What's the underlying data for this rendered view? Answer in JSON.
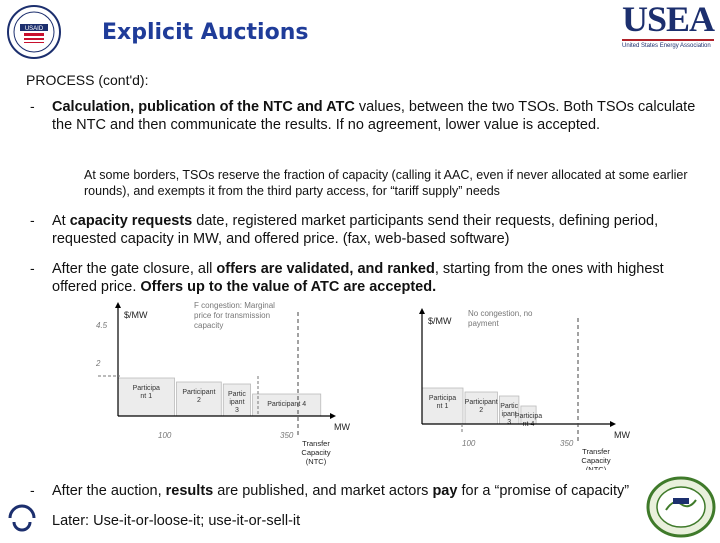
{
  "header": {
    "title": "Explicit Auctions",
    "left_logo_text": "USAID",
    "right_logo": {
      "name": "USEA",
      "tagline": "United States Energy Association"
    }
  },
  "section_title": "PROCESS (cont'd):",
  "bullets": [
    {
      "dash": "-",
      "bold": "Calculation, publication of the NTC and ATC",
      "rest": " values, between the two TSOs. Both TSOs calculate the NTC and then communicate the results. If no agreement, lower value is accepted."
    },
    {
      "dash": "-",
      "pre": "At ",
      "bold": "capacity requests",
      "rest": " date, registered market participants send their requests, defining period, requested capacity in MW, and offered price. (fax, web-based software)"
    },
    {
      "dash": "-",
      "pre": "After the gate closure, all ",
      "bold": "offers are validated, and ranked",
      "mid": ", starting from the ones with highest offered price. ",
      "bold2": "Offers up to the value of ATC are accepted."
    },
    {
      "dash": "-",
      "pre": "After the auction, ",
      "bold": "results",
      "mid": " are published, and market actors ",
      "bold2": "pay",
      "rest": " for a “promise of capacity”"
    }
  ],
  "note": "At some borders, TSOs reserve the fraction of capacity (calling it AAC, even if never allocated at some earlier rounds), and exempts it from the third party access, for “tariff supply” needs",
  "later": "Later: Use-it-or-loose-it; use-it-or-sell-it",
  "chart_data": [
    {
      "type": "bar",
      "ylabel": "$/MW",
      "xlabel": "MW",
      "annotation": "F congestion: Marginal price for transmission capacity",
      "y_ticks": [
        "4.5",
        "2"
      ],
      "x_ticks": [
        "100",
        "350"
      ],
      "capacity_label": [
        "Transfer",
        "Capacity",
        "(NTC)"
      ],
      "bars": [
        {
          "label": [
            "Participa",
            "nt 1"
          ],
          "width_mw": 100
        },
        {
          "label": [
            "Participant",
            "2"
          ],
          "width_mw": 80
        },
        {
          "label": [
            "Partic",
            "ipant",
            "3"
          ],
          "width_mw": 50
        },
        {
          "label": [
            "Participant 4"
          ],
          "width_mw": 120
        }
      ]
    },
    {
      "type": "bar",
      "ylabel": "$/MW",
      "xlabel": "MW",
      "annotation": "No congestion, no payment",
      "y_ticks": [],
      "x_ticks": [
        "100",
        "350"
      ],
      "capacity_label": [
        "Transfer",
        "Capacity",
        "(NTC)"
      ],
      "bars": [
        {
          "label": [
            "Participa",
            "nt 1"
          ],
          "width_mw": 100
        },
        {
          "label": [
            "Participant",
            "2"
          ],
          "width_mw": 80
        },
        {
          "label": [
            "Partic",
            "ipant",
            "3"
          ],
          "width_mw": 50
        },
        {
          "label": [
            "Participa",
            "nt 4"
          ],
          "width_mw": 40
        }
      ]
    }
  ],
  "footer_badges": {
    "seal": "USEA seal",
    "euro": "European TSO logo"
  }
}
